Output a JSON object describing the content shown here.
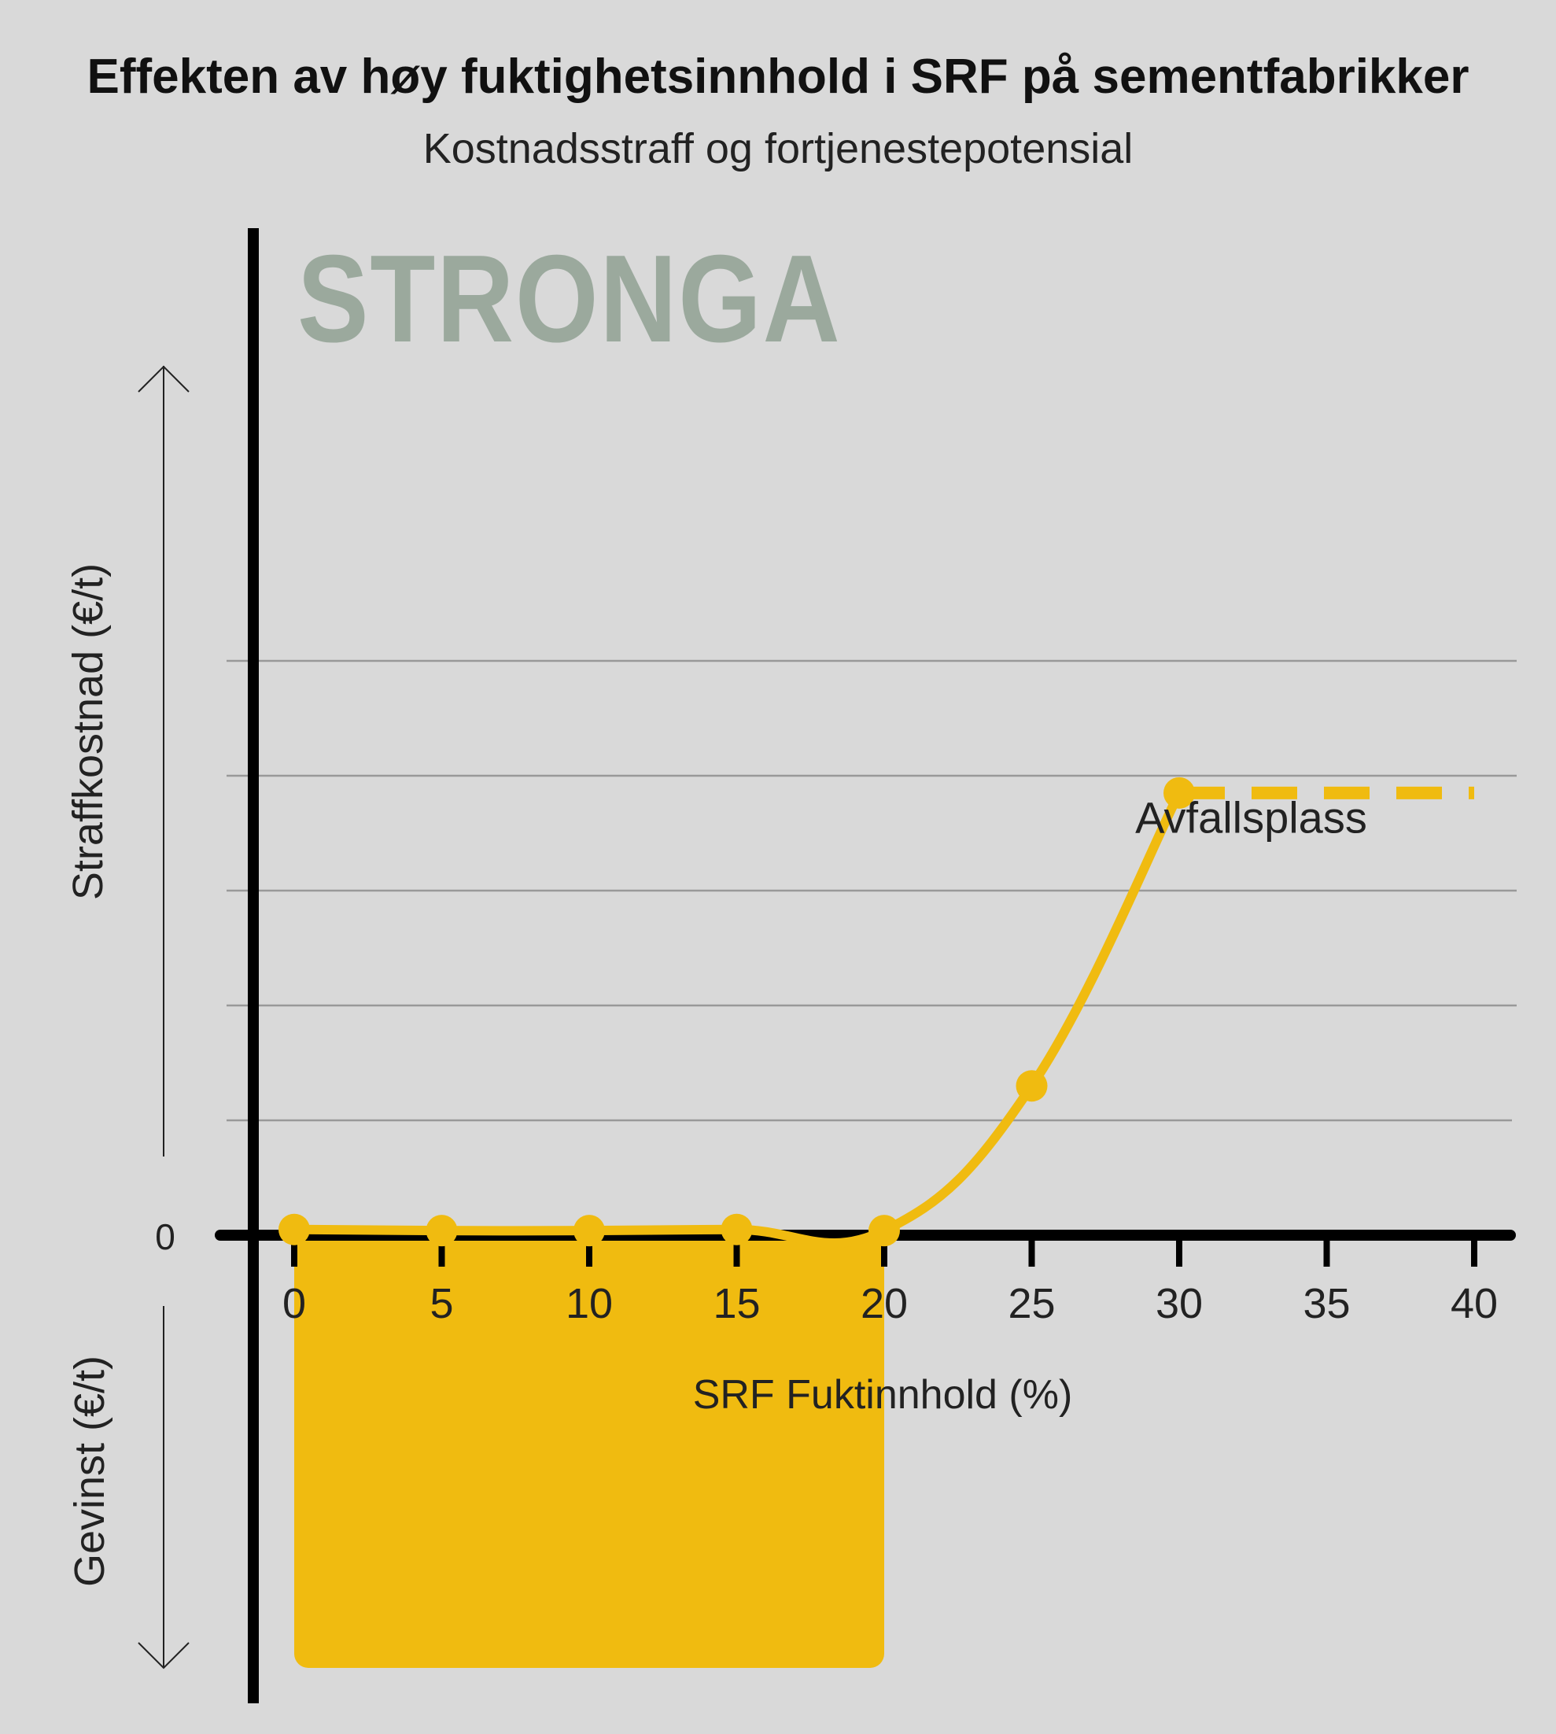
{
  "title": "Effekten av høy fuktighetsinnhold i SRF på sementfabrikker",
  "subtitle": "Kostnadsstraff og fortjenestepotensial",
  "brand": "STRONGA",
  "colors": {
    "background": "#d9d9d9",
    "accent": "#f0bb10",
    "axis": "#000000",
    "grid": "#999999",
    "brand": "#9ba99d"
  },
  "chart_data": {
    "type": "line",
    "title": "Effekten av høy fuktighetsinnhold i SRF på sementfabrikker",
    "subtitle": "Kostnadsstraff og fortjenestepotensial",
    "xlabel": "SRF Fuktinnhold (%)",
    "ylabel_positive": "Straffkostnad (€/t)",
    "ylabel_negative": "Gevinst (€/t)",
    "xlim": [
      0,
      40
    ],
    "xticks": [
      0,
      5,
      10,
      15,
      20,
      25,
      30,
      35,
      40
    ],
    "ylim": [
      -5,
      10
    ],
    "yzero_label": "0",
    "grid": true,
    "series": [
      {
        "name": "",
        "x": [
          0,
          5,
          10,
          15,
          20,
          25,
          30
        ],
        "y": [
          0.1,
          0.08,
          0.08,
          0.1,
          0.08,
          2.6,
          7.7
        ]
      }
    ],
    "extension": {
      "x": [
        30,
        40
      ],
      "y": 7.7,
      "style": "dashed"
    },
    "annotation": {
      "text": "Avfallsplass",
      "x": 35,
      "y": 7.2
    },
    "profit_region": {
      "x": [
        0,
        20
      ],
      "y": [
        -5,
        0
      ]
    }
  }
}
